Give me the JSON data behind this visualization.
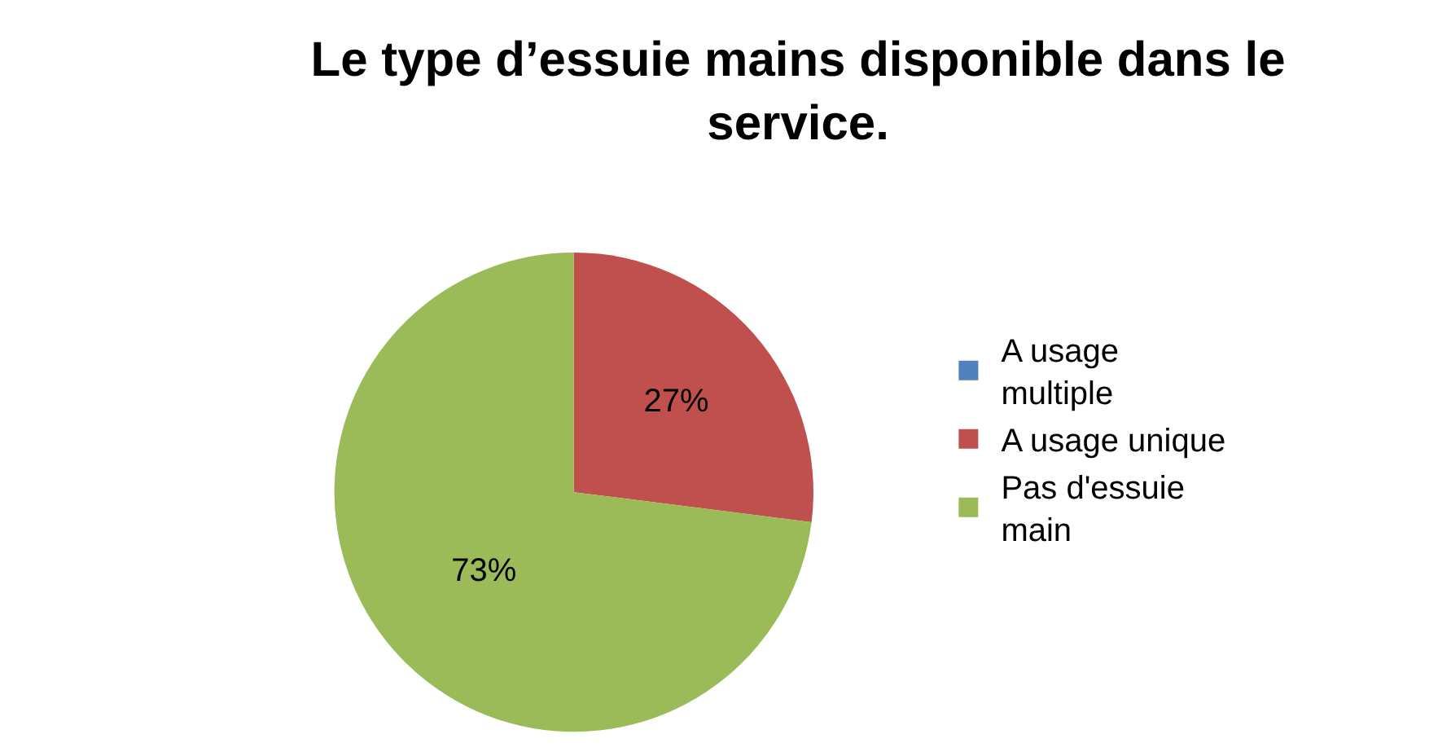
{
  "chart_data": {
    "type": "pie",
    "title": "Le type d’essuie mains disponible dans le service.",
    "categories": [
      "A usage multiple",
      "A usage unique",
      "Pas d'essuie main"
    ],
    "values": [
      0,
      27,
      73
    ],
    "colors": [
      "#4f81bd",
      "#c0504d",
      "#9bbb59"
    ],
    "value_labels": [
      null,
      "27%",
      "73%"
    ],
    "legend": "right"
  }
}
